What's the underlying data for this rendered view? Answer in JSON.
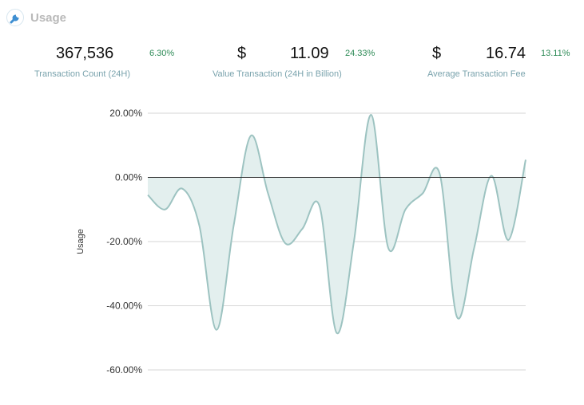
{
  "header": {
    "title": "Usage",
    "icon": "wrench-icon"
  },
  "stats": [
    {
      "currency": "",
      "value": "367,536",
      "change": "6.30%",
      "label": "Transaction Count (24H)"
    },
    {
      "currency": "$",
      "value": "11.09",
      "change": "24.33%",
      "label": "Value Transaction (24H in Billion)"
    },
    {
      "currency": "$",
      "value": "16.74",
      "change": "13.11%",
      "label": "Average Transaction Fee"
    }
  ],
  "colors": {
    "line": "#9dc3c1",
    "fill": "#e3efee",
    "positive": "#2e8b57",
    "label": "#7aa3ad"
  },
  "chart_data": {
    "type": "area",
    "title": "",
    "ylabel": "Usage",
    "xlabel": "",
    "ylim": [
      -60,
      20
    ],
    "yticks": [
      20,
      0,
      -20,
      -40,
      -60
    ],
    "ytick_labels": [
      "20.00%",
      "0.00%",
      "-20.00%",
      "-40.00%",
      "-60.00%"
    ],
    "grid": true,
    "zero_line": true,
    "x": [
      0,
      1,
      2,
      3,
      4,
      5,
      6,
      7,
      8,
      9,
      10,
      11,
      12,
      13,
      14,
      15,
      16,
      17,
      18,
      19,
      20,
      21,
      22
    ],
    "values": [
      -5.5,
      -10,
      -3.5,
      -15,
      -47.5,
      -15,
      13,
      -5,
      -20.5,
      -16,
      -9,
      -48.5,
      -20,
      19.5,
      -22,
      -10,
      -5,
      1,
      -43.5,
      -22,
      0.5,
      -19.5,
      5.5
    ]
  }
}
